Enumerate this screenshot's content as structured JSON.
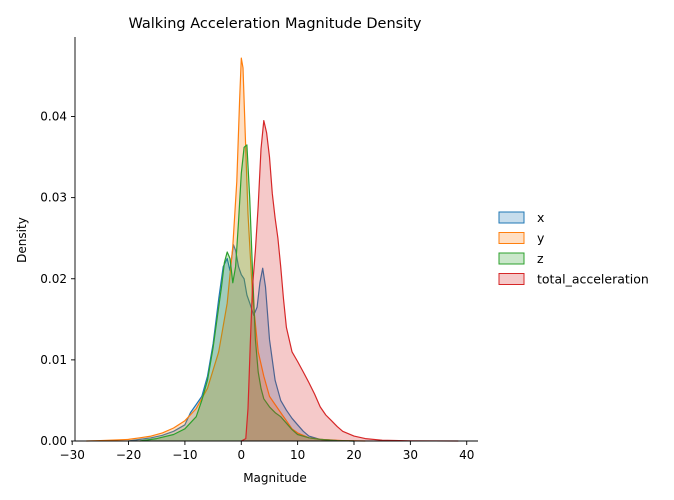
{
  "chart_data": {
    "type": "area",
    "title": "Walking Acceleration Magnitude Density",
    "xlabel": "Magnitude",
    "ylabel": "Density",
    "xlim": [
      -29.5,
      42
    ],
    "ylim": [
      0,
      0.0498
    ],
    "x_ticks": [
      -30,
      -20,
      -10,
      0,
      10,
      20,
      30,
      40
    ],
    "y_ticks": [
      0.0,
      0.01,
      0.02,
      0.03,
      0.04
    ],
    "x_tick_labels": [
      "−30",
      "−20",
      "−10",
      "0",
      "10",
      "20",
      "30",
      "40"
    ],
    "y_tick_labels": [
      "0.00",
      "0.01",
      "0.02",
      "0.03",
      "0.04"
    ],
    "grid": false,
    "legend_position": "right",
    "series": [
      {
        "name": "x",
        "color": "#1f77b4",
        "points": [
          [
            -20,
            0
          ],
          [
            -18,
            0.0002
          ],
          [
            -16,
            0.0004
          ],
          [
            -14,
            0.0007
          ],
          [
            -12,
            0.0012
          ],
          [
            -10,
            0.002
          ],
          [
            -9,
            0.0035
          ],
          [
            -8,
            0.0045
          ],
          [
            -7,
            0.0055
          ],
          [
            -6,
            0.008
          ],
          [
            -5,
            0.012
          ],
          [
            -4,
            0.0175
          ],
          [
            -3.2,
            0.0215
          ],
          [
            -2.5,
            0.0225
          ],
          [
            -2,
            0.021
          ],
          [
            -1.4,
            0.0242
          ],
          [
            -1,
            0.0235
          ],
          [
            -0.5,
            0.0215
          ],
          [
            0,
            0.0205
          ],
          [
            0.5,
            0.02
          ],
          [
            1,
            0.018
          ],
          [
            1.6,
            0.0168
          ],
          [
            2.2,
            0.0155
          ],
          [
            2.8,
            0.0165
          ],
          [
            3.3,
            0.0195
          ],
          [
            3.8,
            0.0213
          ],
          [
            4.3,
            0.019
          ],
          [
            5,
            0.0125
          ],
          [
            6,
            0.0075
          ],
          [
            7,
            0.005
          ],
          [
            8,
            0.0038
          ],
          [
            9,
            0.0028
          ],
          [
            10,
            0.002
          ],
          [
            11,
            0.0012
          ],
          [
            12,
            0.0006
          ],
          [
            14,
            0.0002
          ],
          [
            17,
            5e-05
          ],
          [
            20,
            0
          ]
        ]
      },
      {
        "name": "y",
        "color": "#ff7f0e",
        "points": [
          [
            -27.5,
            0
          ],
          [
            -25,
            5e-05
          ],
          [
            -20,
            0.0002
          ],
          [
            -18,
            0.0004
          ],
          [
            -16,
            0.0006
          ],
          [
            -14,
            0.001
          ],
          [
            -12,
            0.0016
          ],
          [
            -10,
            0.0025
          ],
          [
            -8,
            0.004
          ],
          [
            -6,
            0.0065
          ],
          [
            -4,
            0.011
          ],
          [
            -2.5,
            0.017
          ],
          [
            -1.5,
            0.024
          ],
          [
            -0.8,
            0.032
          ],
          [
            -0.3,
            0.042
          ],
          [
            0,
            0.0472
          ],
          [
            0.3,
            0.046
          ],
          [
            0.7,
            0.038
          ],
          [
            1.2,
            0.028
          ],
          [
            2,
            0.018
          ],
          [
            3,
            0.011
          ],
          [
            4,
            0.008
          ],
          [
            5,
            0.0055
          ],
          [
            6,
            0.0045
          ],
          [
            7,
            0.0035
          ],
          [
            8,
            0.0025
          ],
          [
            9,
            0.0015
          ],
          [
            10,
            0.001
          ],
          [
            12,
            0.0004
          ],
          [
            14,
            0.0002
          ],
          [
            18,
            5e-05
          ],
          [
            22,
            0
          ]
        ]
      },
      {
        "name": "z",
        "color": "#2ca02c",
        "points": [
          [
            -18,
            0
          ],
          [
            -15,
            0.0003
          ],
          [
            -12,
            0.0008
          ],
          [
            -10,
            0.0015
          ],
          [
            -8,
            0.003
          ],
          [
            -7,
            0.005
          ],
          [
            -6,
            0.0075
          ],
          [
            -5,
            0.0115
          ],
          [
            -4,
            0.0165
          ],
          [
            -3.5,
            0.019
          ],
          [
            -3,
            0.022
          ],
          [
            -2.5,
            0.0233
          ],
          [
            -2,
            0.0225
          ],
          [
            -1.5,
            0.0195
          ],
          [
            -1,
            0.0215
          ],
          [
            -0.5,
            0.027
          ],
          [
            0,
            0.033
          ],
          [
            0.5,
            0.0362
          ],
          [
            1,
            0.0365
          ],
          [
            1.5,
            0.03
          ],
          [
            2,
            0.021
          ],
          [
            2.5,
            0.0125
          ],
          [
            3,
            0.0085
          ],
          [
            3.5,
            0.0065
          ],
          [
            4,
            0.0052
          ],
          [
            5,
            0.0042
          ],
          [
            6,
            0.0035
          ],
          [
            7,
            0.003
          ],
          [
            8,
            0.0022
          ],
          [
            9,
            0.0014
          ],
          [
            10,
            0.0008
          ],
          [
            12,
            0.0004
          ],
          [
            14,
            0.0002
          ],
          [
            17,
            5e-05
          ],
          [
            20,
            0
          ]
        ]
      },
      {
        "name": "total_acceleration",
        "color": "#d62728",
        "points": [
          [
            0,
            0
          ],
          [
            0.8,
            0.0003
          ],
          [
            1.2,
            0.004
          ],
          [
            1.6,
            0.012
          ],
          [
            2,
            0.019
          ],
          [
            2.5,
            0.0235
          ],
          [
            3,
            0.029
          ],
          [
            3.5,
            0.036
          ],
          [
            4,
            0.0395
          ],
          [
            4.5,
            0.038
          ],
          [
            5,
            0.035
          ],
          [
            5.5,
            0.0305
          ],
          [
            6,
            0.0275
          ],
          [
            6.5,
            0.025
          ],
          [
            7,
            0.0215
          ],
          [
            7.5,
            0.0175
          ],
          [
            8,
            0.014
          ],
          [
            9,
            0.011
          ],
          [
            10,
            0.0098
          ],
          [
            11,
            0.0085
          ],
          [
            12,
            0.0072
          ],
          [
            13,
            0.0058
          ],
          [
            14,
            0.0042
          ],
          [
            15,
            0.0032
          ],
          [
            16,
            0.0025
          ],
          [
            17,
            0.0018
          ],
          [
            18,
            0.0012
          ],
          [
            20,
            0.0006
          ],
          [
            22,
            0.0003
          ],
          [
            25,
            0.0001
          ],
          [
            30,
            3e-05
          ],
          [
            38.5,
            0
          ]
        ]
      }
    ]
  }
}
